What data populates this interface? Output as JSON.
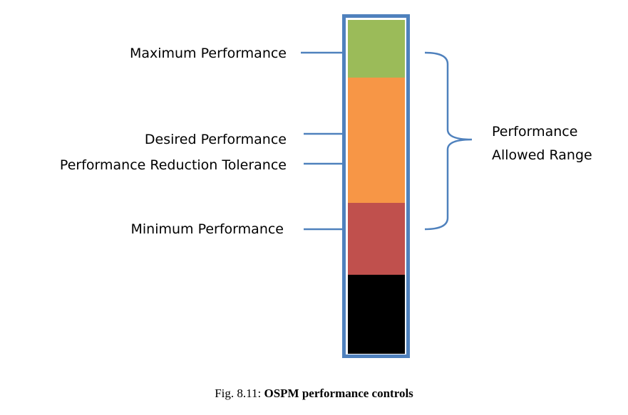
{
  "diagram": {
    "labels": {
      "maximum": "Maximum Performance",
      "desired": "Desired Performance",
      "reduction_tolerance": "Performance Reduction Tolerance",
      "minimum": "Minimum Performance"
    },
    "range_label": {
      "line1": "Performance",
      "line2": "Allowed Range"
    },
    "colors": {
      "frame": "#4f81bd",
      "maximum_band": "#9bbb59",
      "allowed_band": "#f79646",
      "minimum_band": "#c0504d",
      "below_minimum_band": "#000000",
      "connector": "#4f81bd"
    }
  },
  "caption": {
    "prefix": "Fig. 8.11: ",
    "title": "OSPM performance controls"
  }
}
